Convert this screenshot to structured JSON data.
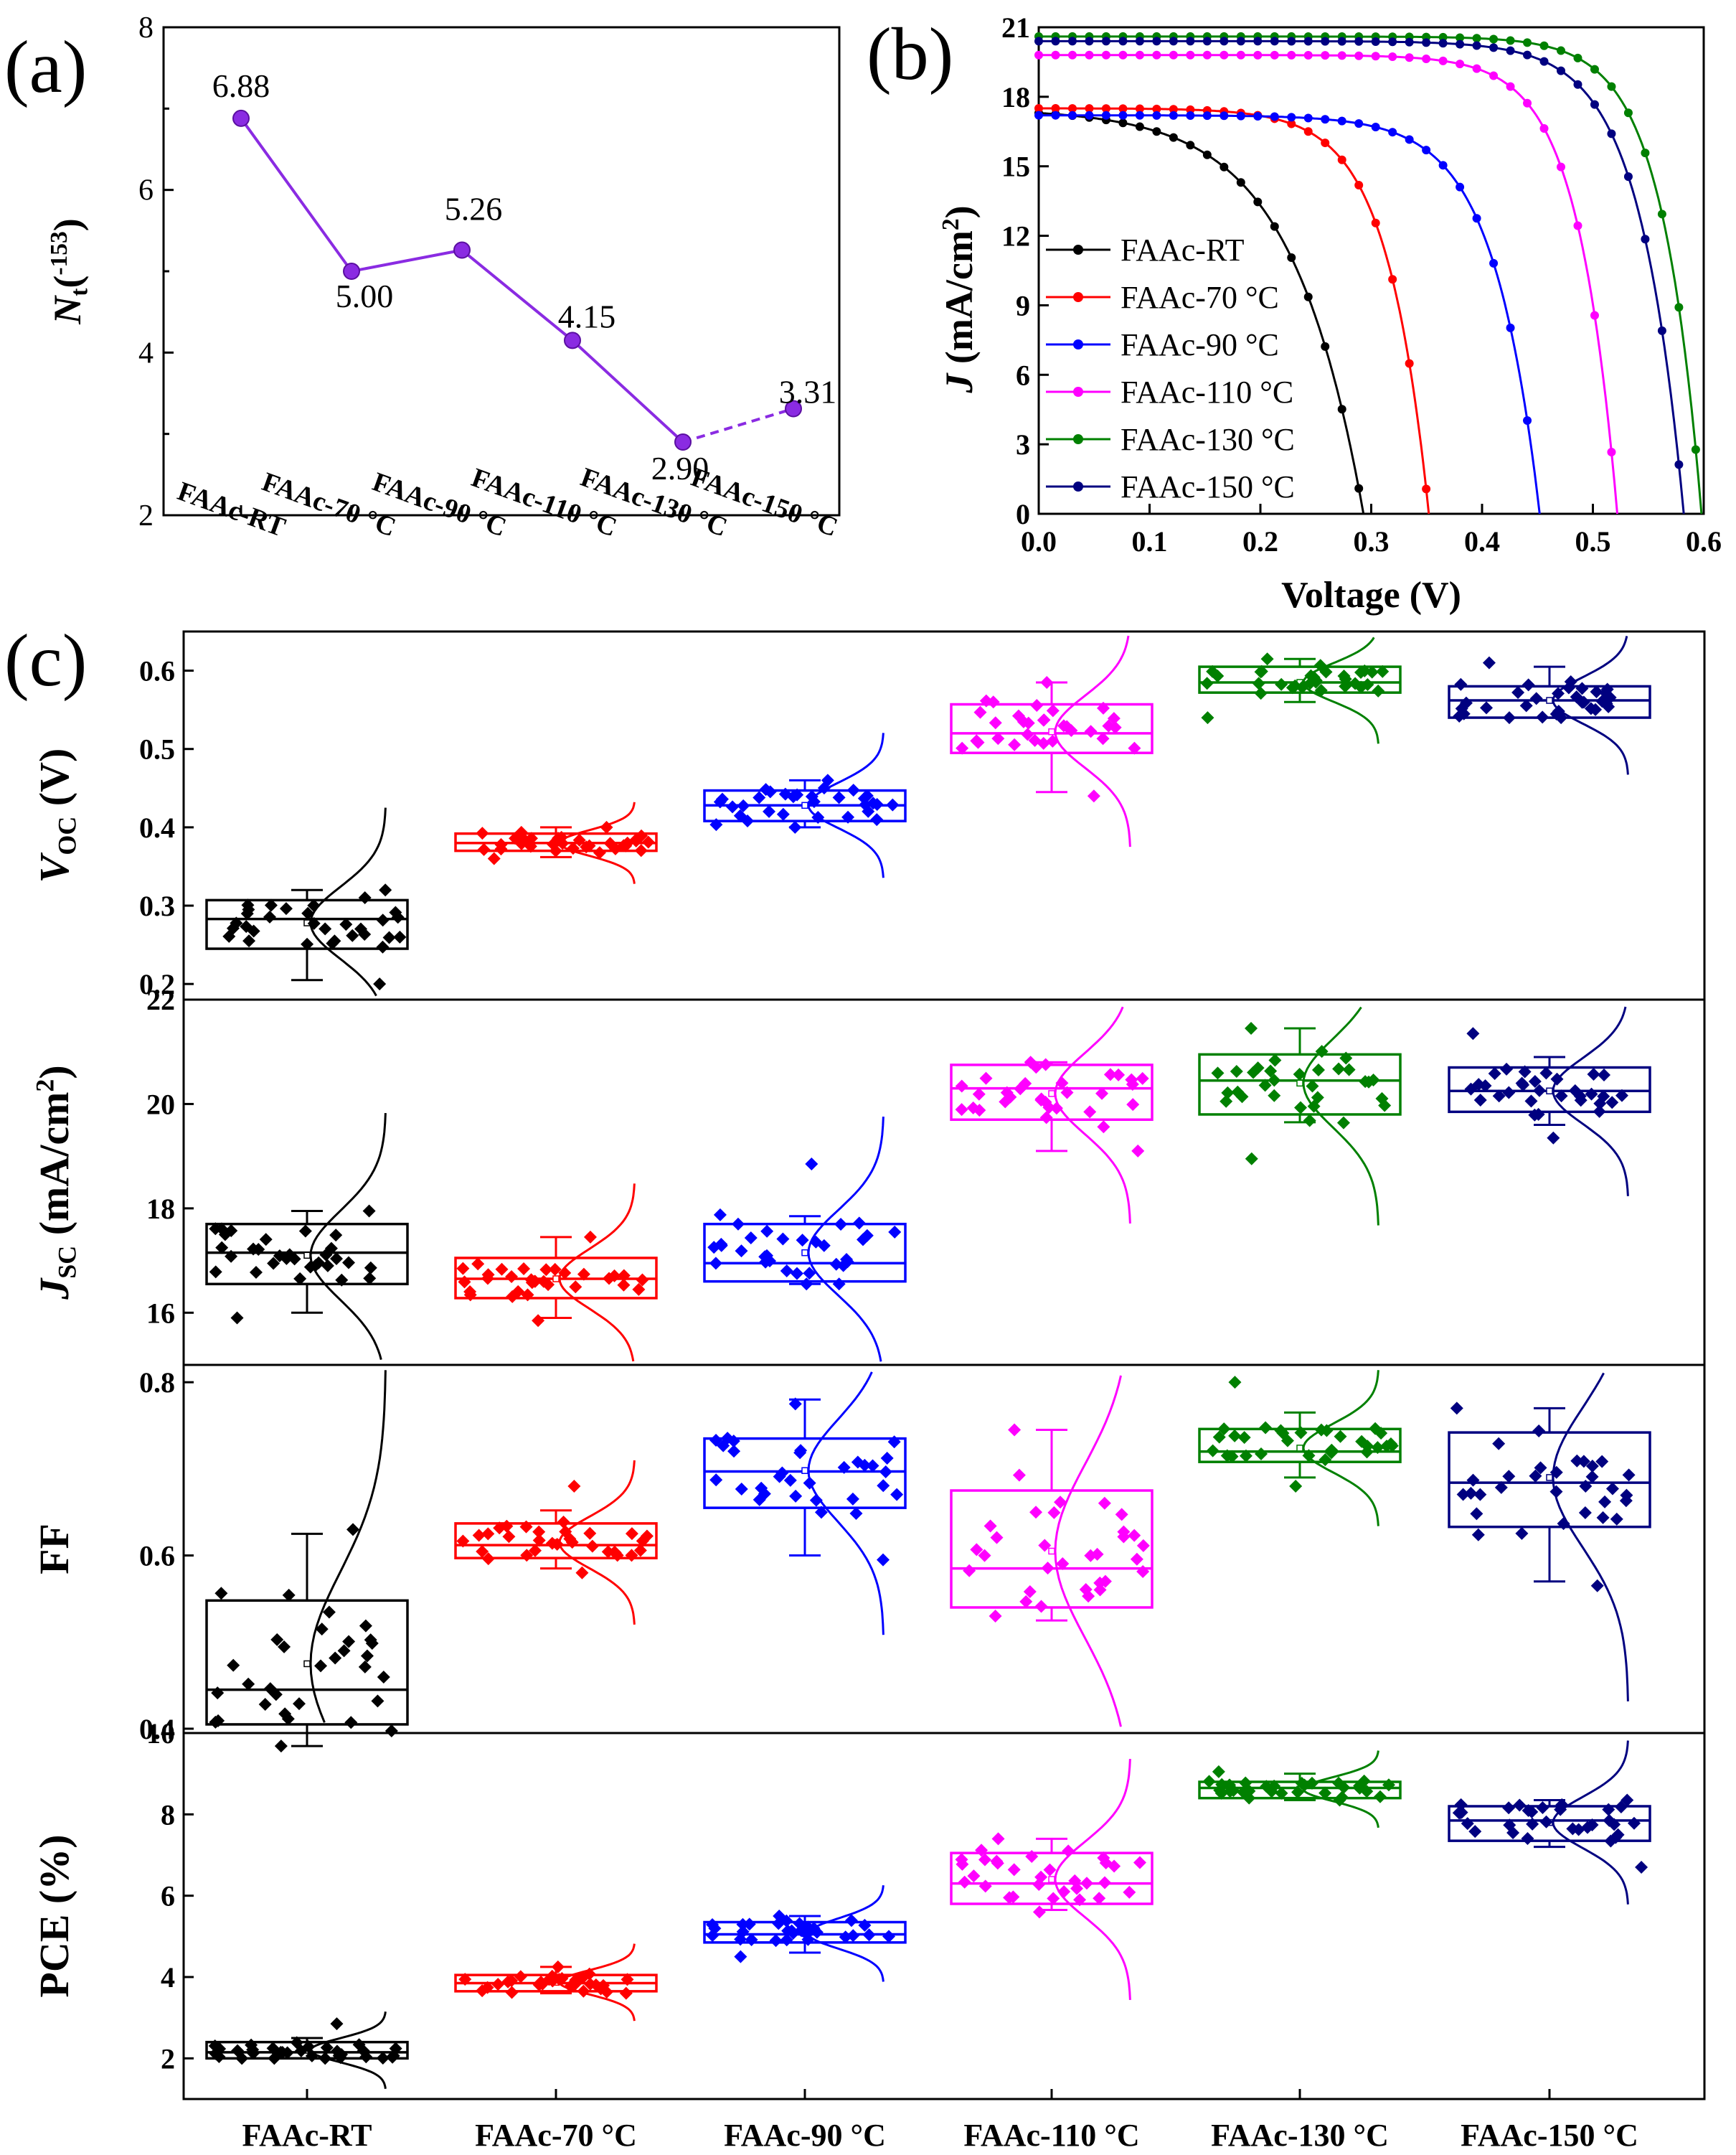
{
  "colors": {
    "axis": "#000000",
    "purple": "#8a2be2",
    "black": "#000000",
    "red": "#ff0000",
    "blue": "#0000ff",
    "magenta": "#ff00ff",
    "green": "#008000",
    "navy": "#000080"
  },
  "panels": {
    "a": {
      "tag": "(a)"
    },
    "b": {
      "tag": "(b)"
    },
    "c": {
      "tag": "(c)"
    }
  },
  "chart_data": [
    {
      "id": "a",
      "type": "line",
      "xlabel": "",
      "ylabel_main": "N",
      "ylabel_sub": "t",
      "ylabel_unit": "(",
      "ylabel_sup": "-153",
      "ylabel_end": ")",
      "ylim": [
        2,
        8
      ],
      "yticks": [
        2,
        4,
        6,
        8
      ],
      "categories": [
        "FAAc-RT",
        "FAAc-70 °C",
        "FAAc-90 °C",
        "FAAc-110 °C",
        "FAAc-130 °C",
        "FAAc-150 °C"
      ],
      "values": [
        6.88,
        5.0,
        5.26,
        4.15,
        2.9,
        3.31
      ],
      "labels": [
        "6.88",
        "5.00",
        "5.26",
        "4.15",
        "2.90",
        "3.31"
      ],
      "dashed_last_segment": true
    },
    {
      "id": "b",
      "type": "line",
      "xlabel": "Voltage (V)",
      "ylabel_main": "J",
      "ylabel_unit": " (mA/cm",
      "ylabel_sup": "2",
      "ylabel_end": ")",
      "xlim": [
        0,
        0.6
      ],
      "ylim": [
        0,
        21
      ],
      "xticks": [
        0.0,
        0.1,
        0.2,
        0.3,
        0.4,
        0.5,
        0.6
      ],
      "xtick_labels": [
        "0.0",
        "0.1",
        "0.2",
        "0.3",
        "0.4",
        "0.5",
        "0.6"
      ],
      "yticks": [
        0,
        3,
        6,
        9,
        12,
        15,
        18,
        21
      ],
      "legend_position": "center-left",
      "series": [
        {
          "name": "FAAc-RT",
          "color": "black",
          "jsc": 17.3,
          "voc": 0.293,
          "n": 0.065
        },
        {
          "name": "FAAc-70 °C",
          "color": "red",
          "jsc": 17.5,
          "voc": 0.352,
          "n": 0.038
        },
        {
          "name": "FAAc-90 °C",
          "color": "blue",
          "jsc": 17.2,
          "voc": 0.452,
          "n": 0.042
        },
        {
          "name": "FAAc-110 °C",
          "color": "magenta",
          "jsc": 19.8,
          "voc": 0.522,
          "n": 0.036
        },
        {
          "name": "FAAc-130 °C",
          "color": "green",
          "jsc": 20.6,
          "voc": 0.598,
          "n": 0.036
        },
        {
          "name": "FAAc-150 °C",
          "color": "navy",
          "jsc": 20.4,
          "voc": 0.582,
          "n": 0.04
        }
      ]
    },
    {
      "id": "c",
      "type": "box",
      "categories": [
        "FAAc-RT",
        "FAAc-70 °C",
        "FAAc-90 °C",
        "FAAc-110 °C",
        "FAAc-130 °C",
        "FAAc-150 °C"
      ],
      "colors": [
        "black",
        "red",
        "blue",
        "magenta",
        "green",
        "navy"
      ],
      "subplots": [
        {
          "id": "voc",
          "ylabel_main": "V",
          "ylabel_sub": "OC",
          "ylabel_unit": " (V)",
          "ylim": [
            0.18,
            0.65
          ],
          "yticks": [
            0.2,
            0.3,
            0.4,
            0.5,
            0.6
          ],
          "ytick_labels": [
            "0.2",
            "0.3",
            "0.4",
            "0.5",
            "0.6"
          ],
          "boxes": [
            {
              "q1": 0.245,
              "median": 0.283,
              "q3": 0.307,
              "whisker_low": 0.205,
              "whisker_high": 0.32,
              "mean": 0.278,
              "lo": 0.2,
              "hi": 0.32
            },
            {
              "q1": 0.37,
              "median": 0.38,
              "q3": 0.392,
              "whisker_low": 0.362,
              "whisker_high": 0.4,
              "mean": 0.38,
              "lo": 0.36,
              "hi": 0.4
            },
            {
              "q1": 0.408,
              "median": 0.428,
              "q3": 0.447,
              "whisker_low": 0.4,
              "whisker_high": 0.46,
              "mean": 0.428,
              "lo": 0.4,
              "hi": 0.46
            },
            {
              "q1": 0.495,
              "median": 0.52,
              "q3": 0.557,
              "whisker_low": 0.445,
              "whisker_high": 0.585,
              "mean": 0.522,
              "lo": 0.44,
              "hi": 0.585
            },
            {
              "q1": 0.572,
              "median": 0.585,
              "q3": 0.605,
              "whisker_low": 0.56,
              "whisker_high": 0.615,
              "mean": 0.585,
              "lo": 0.54,
              "hi": 0.615
            },
            {
              "q1": 0.54,
              "median": 0.562,
              "q3": 0.58,
              "whisker_low": 0.54,
              "whisker_high": 0.605,
              "mean": 0.562,
              "lo": 0.54,
              "hi": 0.61
            }
          ]
        },
        {
          "id": "jsc",
          "ylabel_main": "J",
          "ylabel_sub": "SC",
          "ylabel_unit": " (mA/cm",
          "ylabel_sup": "2",
          "ylabel_end": ")",
          "ylim": [
            15.0,
            22.0
          ],
          "yticks": [
            16,
            18,
            20,
            22
          ],
          "ytick_labels": [
            "16",
            "18",
            "20",
            "22"
          ],
          "boxes": [
            {
              "q1": 16.55,
              "median": 17.15,
              "q3": 17.7,
              "whisker_low": 16.0,
              "whisker_high": 17.95,
              "mean": 17.1,
              "lo": 15.9,
              "hi": 17.95
            },
            {
              "q1": 16.28,
              "median": 16.65,
              "q3": 17.05,
              "whisker_low": 15.9,
              "whisker_high": 17.45,
              "mean": 16.65,
              "lo": 15.85,
              "hi": 17.45
            },
            {
              "q1": 16.6,
              "median": 16.95,
              "q3": 17.7,
              "whisker_low": 16.55,
              "whisker_high": 17.85,
              "mean": 17.15,
              "lo": 16.55,
              "hi": 18.85
            },
            {
              "q1": 19.7,
              "median": 20.3,
              "q3": 20.75,
              "whisker_low": 19.1,
              "whisker_high": 20.8,
              "mean": 20.2,
              "lo": 19.1,
              "hi": 20.8
            },
            {
              "q1": 19.8,
              "median": 20.45,
              "q3": 20.95,
              "whisker_low": 19.65,
              "whisker_high": 21.45,
              "mean": 20.4,
              "lo": 18.95,
              "hi": 21.45
            },
            {
              "q1": 19.85,
              "median": 20.25,
              "q3": 20.7,
              "whisker_low": 19.6,
              "whisker_high": 20.9,
              "mean": 20.25,
              "lo": 19.35,
              "hi": 21.35
            }
          ]
        },
        {
          "id": "ff",
          "ylabel_main": "FF",
          "ylim": [
            0.395,
            0.82
          ],
          "yticks": [
            0.4,
            0.6,
            0.8
          ],
          "ytick_labels": [
            "0.4",
            "0.6",
            "0.8"
          ],
          "boxes": [
            {
              "q1": 0.405,
              "median": 0.445,
              "q3": 0.548,
              "whisker_low": 0.38,
              "whisker_high": 0.625,
              "mean": 0.475,
              "lo": 0.38,
              "hi": 0.63
            },
            {
              "q1": 0.597,
              "median": 0.612,
              "q3": 0.637,
              "whisker_low": 0.585,
              "whisker_high": 0.652,
              "mean": 0.615,
              "lo": 0.58,
              "hi": 0.68
            },
            {
              "q1": 0.655,
              "median": 0.697,
              "q3": 0.735,
              "whisker_low": 0.6,
              "whisker_high": 0.78,
              "mean": 0.698,
              "lo": 0.595,
              "hi": 0.775
            },
            {
              "q1": 0.54,
              "median": 0.585,
              "q3": 0.675,
              "whisker_low": 0.525,
              "whisker_high": 0.745,
              "mean": 0.605,
              "lo": 0.53,
              "hi": 0.745
            },
            {
              "q1": 0.708,
              "median": 0.72,
              "q3": 0.746,
              "whisker_low": 0.69,
              "whisker_high": 0.765,
              "mean": 0.724,
              "lo": 0.68,
              "hi": 0.8
            },
            {
              "q1": 0.633,
              "median": 0.684,
              "q3": 0.742,
              "whisker_low": 0.57,
              "whisker_high": 0.77,
              "mean": 0.69,
              "lo": 0.565,
              "hi": 0.77
            }
          ]
        },
        {
          "id": "pce",
          "ylabel_main": "PCE (%)",
          "ylim": [
            1.0,
            10.0
          ],
          "yticks": [
            2,
            4,
            6,
            8,
            10
          ],
          "ytick_labels": [
            "2",
            "4",
            "6",
            "8",
            "10"
          ],
          "boxes": [
            {
              "q1": 2.0,
              "median": 2.15,
              "q3": 2.4,
              "whisker_low": 2.0,
              "whisker_high": 2.5,
              "mean": 2.2,
              "lo": 2.0,
              "hi": 2.85
            },
            {
              "q1": 3.65,
              "median": 3.85,
              "q3": 4.05,
              "whisker_low": 3.6,
              "whisker_high": 4.25,
              "mean": 3.87,
              "lo": 3.6,
              "hi": 4.25
            },
            {
              "q1": 4.85,
              "median": 5.05,
              "q3": 5.35,
              "whisker_low": 4.6,
              "whisker_high": 5.5,
              "mean": 5.07,
              "lo": 4.5,
              "hi": 5.5
            },
            {
              "q1": 5.8,
              "median": 6.3,
              "q3": 7.05,
              "whisker_low": 5.65,
              "whisker_high": 7.4,
              "mean": 6.4,
              "lo": 5.6,
              "hi": 7.4
            },
            {
              "q1": 8.4,
              "median": 8.65,
              "q3": 8.8,
              "whisker_low": 8.35,
              "whisker_high": 9.0,
              "mean": 8.62,
              "lo": 8.35,
              "hi": 9.05
            },
            {
              "q1": 7.35,
              "median": 7.85,
              "q3": 8.2,
              "whisker_low": 7.2,
              "whisker_high": 8.35,
              "mean": 7.8,
              "lo": 6.7,
              "hi": 8.35
            }
          ]
        }
      ]
    }
  ]
}
